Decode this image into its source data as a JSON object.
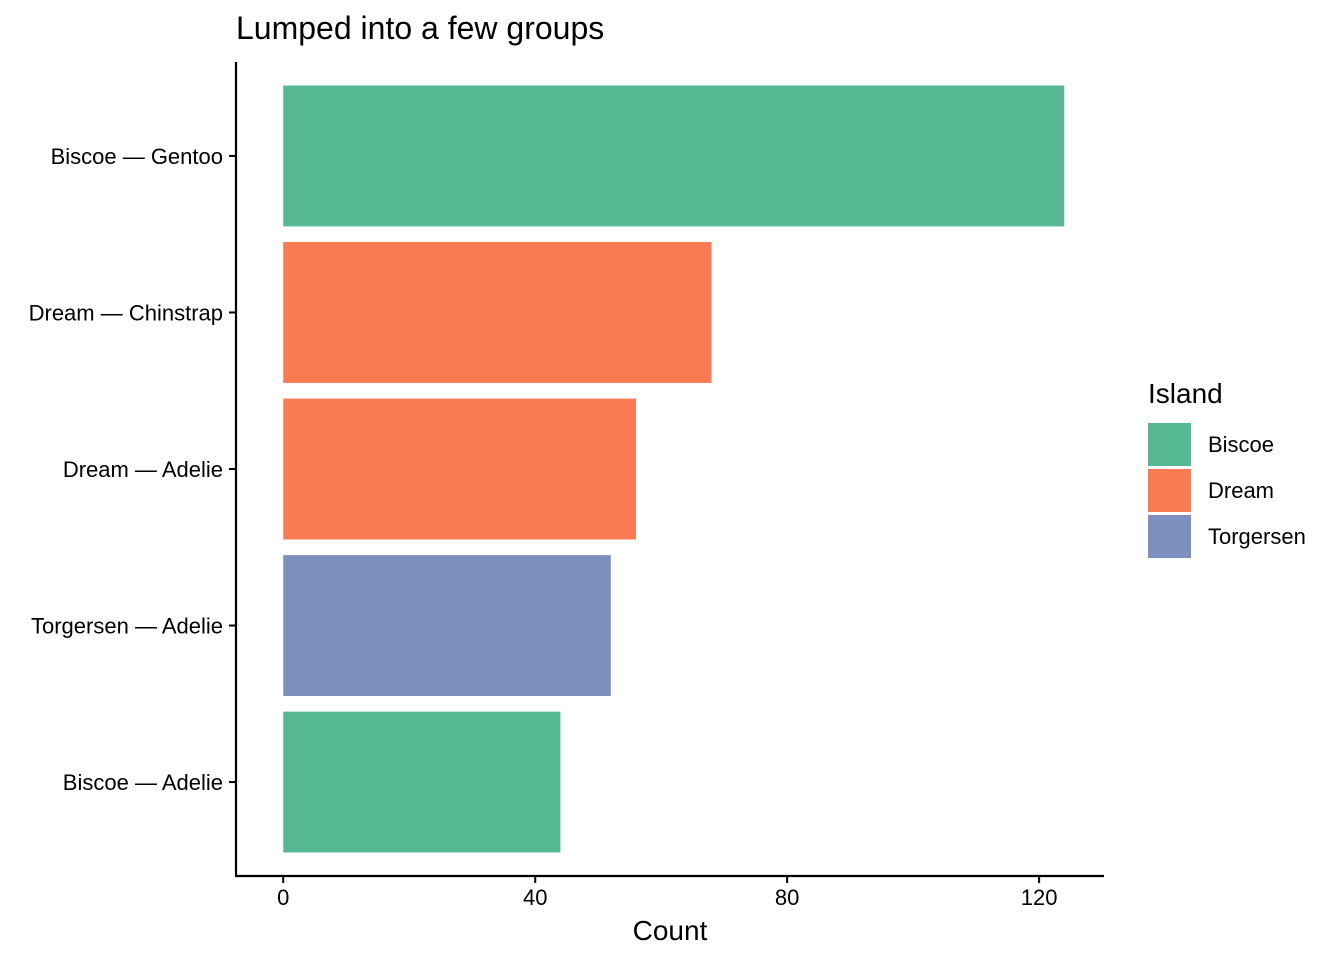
{
  "chart_data": {
    "type": "bar",
    "orientation": "horizontal",
    "title": "Lumped into a few groups",
    "xlabel": "Count",
    "ylabel": "",
    "xlim": [
      -7.5,
      130.3
    ],
    "xticks": [
      0,
      40,
      80,
      120
    ],
    "grid": false,
    "categories": [
      "Biscoe — Gentoo",
      "Dream — Chinstrap",
      "Dream — Adelie",
      "Torgersen — Adelie",
      "Biscoe — Adelie"
    ],
    "values": [
      124,
      68,
      56,
      52,
      44
    ],
    "fill_group": [
      "Biscoe",
      "Dream",
      "Dream",
      "Torgersen",
      "Biscoe"
    ],
    "legend": {
      "title": "Island",
      "placement": "right",
      "entries": [
        {
          "label": "Biscoe",
          "color": "#57B994"
        },
        {
          "label": "Dream",
          "color": "#F97B53"
        },
        {
          "label": "Torgersen",
          "color": "#7D8FBF"
        }
      ]
    }
  }
}
